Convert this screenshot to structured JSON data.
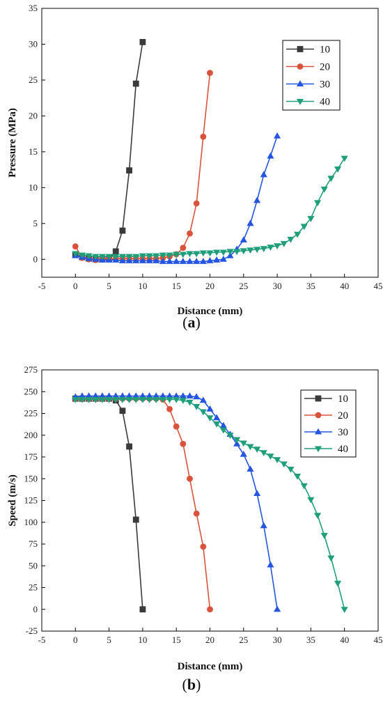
{
  "panel_labels": [
    "a",
    "b"
  ],
  "chart_data": [
    {
      "type": "line",
      "panel": "a",
      "xlabel": "Distance (mm)",
      "ylabel": "Pressure (MPa)",
      "xlim": [
        -5,
        45
      ],
      "ylim": [
        -2.5,
        35
      ],
      "xticks": [
        -5,
        0,
        5,
        10,
        15,
        20,
        25,
        30,
        35,
        40,
        45
      ],
      "yticks": [
        0,
        5,
        10,
        15,
        20,
        25,
        30,
        35
      ],
      "grid": false,
      "legend_position": "top-right",
      "series": [
        {
          "name": "10",
          "color": "#3a3a3a",
          "marker": "square",
          "x": [
            0,
            1,
            2,
            3,
            4,
            5,
            6,
            7,
            8,
            9,
            10
          ],
          "y": [
            0.6,
            0.3,
            0.1,
            0.0,
            0.0,
            0.1,
            1.1,
            4.0,
            12.4,
            24.5,
            30.3
          ]
        },
        {
          "name": "20",
          "color": "#d9533b",
          "marker": "circle",
          "x": [
            0,
            1,
            2,
            3,
            4,
            5,
            6,
            7,
            8,
            9,
            10,
            11,
            12,
            13,
            14,
            15,
            16,
            17,
            18,
            19,
            20
          ],
          "y": [
            1.8,
            0.2,
            0.0,
            -0.1,
            0.0,
            0.0,
            0.1,
            0.1,
            0.1,
            0.1,
            0.1,
            0.1,
            0.1,
            0.2,
            0.4,
            0.7,
            1.6,
            3.6,
            7.8,
            17.1,
            26.0
          ]
        },
        {
          "name": "30",
          "color": "#2455e0",
          "marker": "triangle-up",
          "x": [
            0,
            1,
            2,
            3,
            4,
            5,
            6,
            7,
            8,
            9,
            10,
            11,
            12,
            13,
            14,
            15,
            16,
            17,
            18,
            19,
            20,
            21,
            22,
            23,
            24,
            25,
            26,
            27,
            28,
            29,
            30
          ],
          "y": [
            0.5,
            0.3,
            0.1,
            0.0,
            -0.1,
            -0.1,
            -0.1,
            -0.2,
            -0.2,
            -0.2,
            -0.2,
            -0.2,
            -0.2,
            -0.3,
            -0.3,
            -0.3,
            -0.3,
            -0.3,
            -0.3,
            -0.3,
            -0.2,
            -0.1,
            0.0,
            0.5,
            1.4,
            2.7,
            5.0,
            8.2,
            11.8,
            14.4,
            17.2
          ]
        },
        {
          "name": "40",
          "color": "#1f9e7a",
          "marker": "triangle-down",
          "x": [
            0,
            1,
            2,
            3,
            4,
            5,
            6,
            7,
            8,
            9,
            10,
            11,
            12,
            13,
            14,
            15,
            16,
            17,
            18,
            19,
            20,
            21,
            22,
            23,
            24,
            25,
            26,
            27,
            28,
            29,
            30,
            31,
            32,
            33,
            34,
            35,
            36,
            37,
            38,
            39,
            40
          ],
          "y": [
            0.8,
            0.6,
            0.5,
            0.4,
            0.4,
            0.4,
            0.4,
            0.4,
            0.4,
            0.4,
            0.5,
            0.5,
            0.5,
            0.6,
            0.6,
            0.7,
            0.7,
            0.8,
            0.8,
            0.9,
            0.9,
            1.0,
            1.0,
            1.1,
            1.1,
            1.2,
            1.3,
            1.4,
            1.5,
            1.7,
            1.9,
            2.2,
            2.8,
            3.5,
            4.6,
            5.7,
            7.9,
            9.8,
            11.3,
            12.6,
            14.1
          ]
        }
      ]
    },
    {
      "type": "line",
      "panel": "b",
      "xlabel": "Distance (mm)",
      "ylabel": "Speed (m/s)",
      "xlim": [
        -5,
        45
      ],
      "ylim": [
        -25,
        275
      ],
      "xticks": [
        -5,
        0,
        5,
        10,
        15,
        20,
        25,
        30,
        35,
        40,
        45
      ],
      "yticks": [
        -25,
        0,
        25,
        50,
        75,
        100,
        125,
        150,
        175,
        200,
        225,
        250,
        275
      ],
      "grid": false,
      "legend_position": "top-right",
      "series": [
        {
          "name": "10",
          "color": "#3a3a3a",
          "marker": "square",
          "x": [
            0,
            1,
            2,
            3,
            4,
            5,
            6,
            7,
            8,
            9,
            10
          ],
          "y": [
            242,
            242,
            242,
            242,
            242,
            242,
            240,
            228,
            187,
            103,
            0
          ]
        },
        {
          "name": "20",
          "color": "#d9533b",
          "marker": "circle",
          "x": [
            0,
            1,
            2,
            3,
            4,
            5,
            6,
            7,
            8,
            9,
            10,
            11,
            12,
            13,
            14,
            15,
            16,
            17,
            18,
            19,
            20
          ],
          "y": [
            242,
            242,
            242,
            242,
            242,
            242,
            242,
            242,
            242,
            242,
            242,
            242,
            242,
            241,
            230,
            210,
            190,
            150,
            110,
            72,
            0
          ]
        },
        {
          "name": "30",
          "color": "#2455e0",
          "marker": "triangle-up",
          "x": [
            0,
            1,
            2,
            3,
            4,
            5,
            6,
            7,
            8,
            9,
            10,
            11,
            12,
            13,
            14,
            15,
            16,
            17,
            18,
            19,
            20,
            21,
            22,
            23,
            24,
            25,
            26,
            27,
            28,
            29,
            30
          ],
          "y": [
            244,
            245,
            245,
            245,
            245,
            245,
            245,
            245,
            245,
            245,
            245,
            245,
            245,
            245,
            245,
            245,
            245,
            245,
            244,
            240,
            230,
            220,
            211,
            201,
            190,
            178,
            161,
            133,
            96,
            51,
            0
          ]
        },
        {
          "name": "40",
          "color": "#1f9e7a",
          "marker": "triangle-down",
          "x": [
            0,
            1,
            2,
            3,
            4,
            5,
            6,
            7,
            8,
            9,
            10,
            11,
            12,
            13,
            14,
            15,
            16,
            17,
            18,
            19,
            20,
            21,
            22,
            23,
            24,
            25,
            26,
            27,
            28,
            29,
            30,
            31,
            32,
            33,
            34,
            35,
            36,
            37,
            38,
            39,
            40
          ],
          "y": [
            241,
            241,
            241,
            241,
            241,
            241,
            241,
            241,
            241,
            241,
            241,
            241,
            241,
            241,
            241,
            241,
            240,
            238,
            233,
            227,
            220,
            213,
            206,
            200,
            195,
            191,
            187,
            184,
            180,
            176,
            172,
            167,
            161,
            153,
            142,
            126,
            108,
            85,
            59,
            30,
            0
          ]
        }
      ]
    }
  ]
}
